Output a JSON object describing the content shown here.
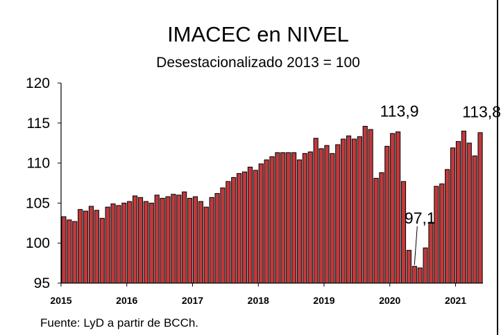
{
  "chart_data": {
    "type": "bar",
    "title": "IMACEC en NIVEL",
    "subtitle": "Desestacionalizado 2013 = 100",
    "ylim": [
      95,
      120
    ],
    "yticks": [
      "95",
      "100",
      "105",
      "110",
      "115",
      "120"
    ],
    "xticks": [
      {
        "label": "2015",
        "index": 0
      },
      {
        "label": "2016",
        "index": 12
      },
      {
        "label": "2017",
        "index": 24
      },
      {
        "label": "2018",
        "index": 36
      },
      {
        "label": "2019",
        "index": 48
      },
      {
        "label": "2020",
        "index": 60
      },
      {
        "label": "2021",
        "index": 72
      }
    ],
    "values": [
      103.3,
      102.9,
      102.7,
      104.2,
      104.0,
      104.6,
      104.1,
      103.1,
      104.5,
      104.9,
      104.7,
      105.0,
      105.2,
      105.9,
      105.7,
      105.2,
      105.0,
      106.0,
      105.6,
      105.8,
      106.1,
      106.0,
      106.4,
      105.6,
      105.8,
      105.2,
      104.5,
      105.7,
      106.2,
      106.9,
      107.7,
      108.2,
      108.7,
      108.9,
      109.5,
      109.1,
      109.9,
      110.4,
      110.8,
      111.3,
      111.3,
      111.3,
      111.3,
      110.4,
      111.2,
      111.4,
      113.1,
      111.8,
      112.2,
      111.2,
      112.3,
      113.0,
      113.4,
      113.0,
      113.3,
      114.6,
      114.2,
      108.1,
      108.8,
      112.1,
      113.7,
      113.9,
      107.7,
      99.1,
      97.1,
      96.9,
      99.4,
      102.6,
      107.1,
      107.4,
      109.2,
      111.9,
      112.7,
      114.0,
      112.5,
      110.9,
      113.8
    ],
    "annotations": [
      {
        "text": "113,9",
        "index": 61,
        "value": 113.9
      },
      {
        "text": "97,1",
        "index": 64,
        "value": 97.1
      },
      {
        "text": "113,8",
        "index": 76,
        "value": 113.8
      }
    ]
  },
  "footer": {
    "source": "Fuente: LyD a partir de BCCh."
  }
}
